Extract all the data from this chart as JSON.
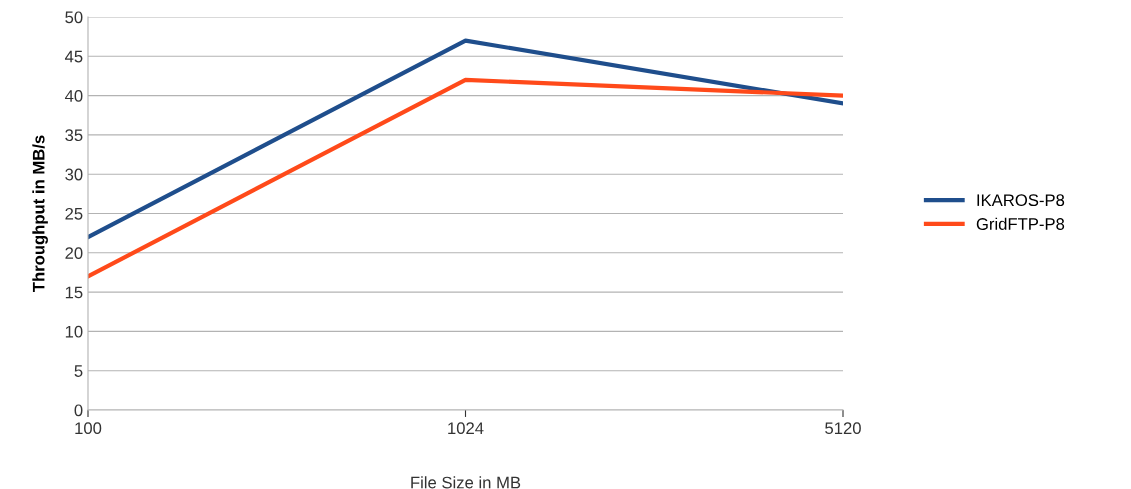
{
  "chart_data": {
    "type": "line",
    "xlabel": "File Size in MB",
    "ylabel": "Throughput in MB/s",
    "categories": [
      "100",
      "1024",
      "5120"
    ],
    "series": [
      {
        "name": "IKAROS-P8",
        "color": "#1f4e8c",
        "values": [
          22,
          47,
          39
        ]
      },
      {
        "name": "GridFTP-P8",
        "color": "#ff4a1a",
        "values": [
          17,
          42,
          40
        ]
      }
    ],
    "ylim": [
      0,
      50
    ],
    "yticks": [
      0,
      5,
      10,
      15,
      20,
      25,
      30,
      35,
      40,
      45,
      50
    ],
    "grid": "y",
    "legend": "right",
    "marker": "none",
    "line_style": "solid"
  }
}
